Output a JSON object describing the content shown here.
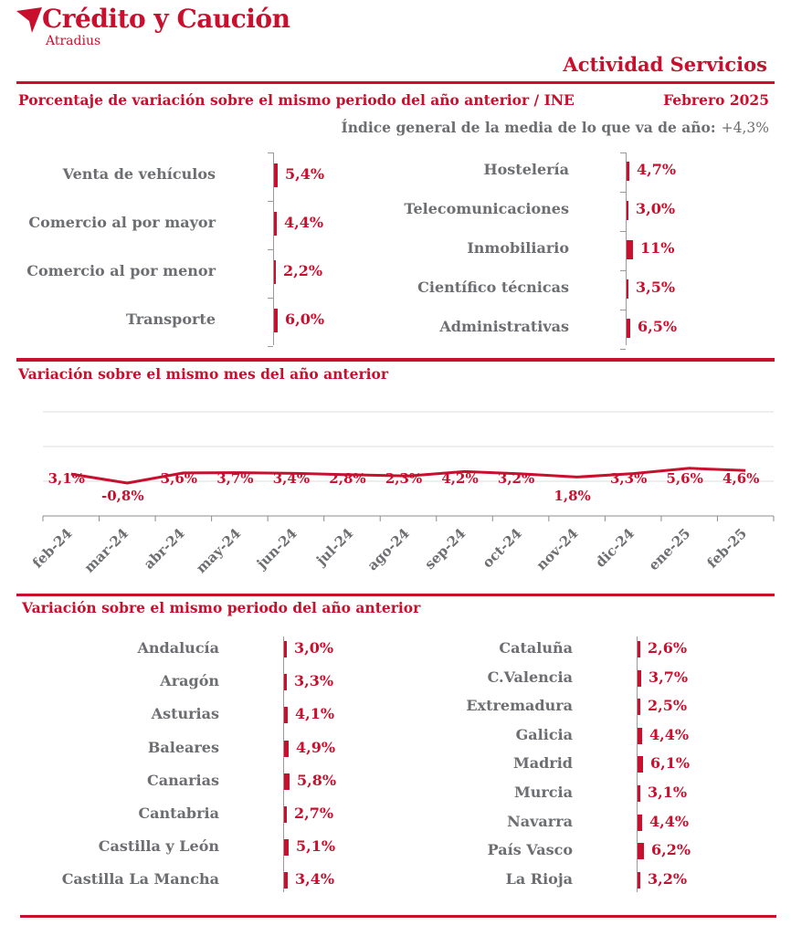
{
  "brand": {
    "name": "Crédito y Caución",
    "sub": "Atradius"
  },
  "report_title": "Actividad Servicios",
  "section1": {
    "title": "Porcentaje de variación sobre el mismo periodo del año anterior / INE",
    "date": "Febrero 2025",
    "index_label": "Índice general de la media de lo que va de año:",
    "index_value": "+4,3%",
    "left": [
      {
        "label": "Venta de vehículos",
        "value": 5.4,
        "text": "5,4%"
      },
      {
        "label": "Comercio al por mayor",
        "value": 4.4,
        "text": "4,4%"
      },
      {
        "label": "Comercio al por menor",
        "value": 2.2,
        "text": "2,2%"
      },
      {
        "label": "Transporte",
        "value": 6.0,
        "text": "6,0%"
      }
    ],
    "right": [
      {
        "label": "Hostelería",
        "value": 4.7,
        "text": "4,7%"
      },
      {
        "label": "Telecomunicaciones",
        "value": 3.0,
        "text": "3,0%"
      },
      {
        "label": "Inmobiliario",
        "value": 11,
        "text": "11%"
      },
      {
        "label": "Científico técnicas",
        "value": 3.5,
        "text": "3,5%"
      },
      {
        "label": "Administrativas",
        "value": 6.5,
        "text": "6,5%"
      }
    ]
  },
  "section2": {
    "title": "Variación sobre el mismo mes del año anterior"
  },
  "section3": {
    "title": "Variación sobre el mismo periodo del año anterior",
    "left": [
      {
        "label": "Andalucía",
        "value": 3.0,
        "text": "3,0%"
      },
      {
        "label": "Aragón",
        "value": 3.3,
        "text": "3,3%"
      },
      {
        "label": "Asturias",
        "value": 4.1,
        "text": "4,1%"
      },
      {
        "label": "Baleares",
        "value": 4.9,
        "text": "4,9%"
      },
      {
        "label": "Canarias",
        "value": 5.8,
        "text": "5,8%"
      },
      {
        "label": "Cantabria",
        "value": 2.7,
        "text": "2,7%"
      },
      {
        "label": "Castilla y León",
        "value": 5.1,
        "text": "5,1%"
      },
      {
        "label": "Castilla La Mancha",
        "value": 3.4,
        "text": "3,4%"
      }
    ],
    "right": [
      {
        "label": "Cataluña",
        "value": 2.6,
        "text": "2,6%"
      },
      {
        "label": "C.Valencia",
        "value": 3.7,
        "text": "3,7%"
      },
      {
        "label": "Extremadura",
        "value": 2.5,
        "text": "2,5%"
      },
      {
        "label": "Galicia",
        "value": 4.4,
        "text": "4,4%"
      },
      {
        "label": "Madrid",
        "value": 6.1,
        "text": "6,1%"
      },
      {
        "label": "Murcia",
        "value": 3.1,
        "text": "3,1%"
      },
      {
        "label": "Navarra",
        "value": 4.4,
        "text": "4,4%"
      },
      {
        "label": "País Vasco",
        "value": 6.2,
        "text": "6,2%"
      },
      {
        "label": "La Rioja",
        "value": 3.2,
        "text": "3,2%"
      }
    ]
  },
  "colors": {
    "accent": "#c8102e",
    "text_gray": "#6d6e71"
  },
  "chart_data": [
    {
      "type": "bar",
      "orientation": "horizontal",
      "categories": [
        "Venta de vehículos",
        "Comercio al por mayor",
        "Comercio al por menor",
        "Transporte",
        "Hostelería",
        "Telecomunicaciones",
        "Inmobiliario",
        "Científico técnicas",
        "Administrativas"
      ],
      "values": [
        5.4,
        4.4,
        2.2,
        6.0,
        4.7,
        3.0,
        11,
        3.5,
        6.5
      ],
      "title": "Porcentaje de variación sobre el mismo periodo del año anterior / INE"
    },
    {
      "type": "line",
      "title": "Variación sobre el mismo mes del año anterior",
      "x": [
        "feb-24",
        "mar-24",
        "abr-24",
        "may-24",
        "jun-24",
        "jul-24",
        "ago-24",
        "sep-24",
        "oct-24",
        "nov-24",
        "dic-24",
        "ene-25",
        "feb-25"
      ],
      "values": [
        3.1,
        -0.8,
        3.6,
        3.7,
        3.4,
        2.8,
        2.3,
        4.2,
        3.2,
        1.8,
        3.3,
        5.6,
        4.6
      ],
      "labels": [
        "3,1%",
        "-0,8%",
        "3,6%",
        "3,7%",
        "3,4%",
        "2,8%",
        "2,3%",
        "4,2%",
        "3,2%",
        "1,8%",
        "3,3%",
        "5,6%",
        "4,6%"
      ],
      "ylim": [
        -15,
        30
      ],
      "grid": true
    },
    {
      "type": "bar",
      "orientation": "horizontal",
      "categories": [
        "Andalucía",
        "Aragón",
        "Asturias",
        "Baleares",
        "Canarias",
        "Cantabria",
        "Castilla y León",
        "Castilla La Mancha",
        "Cataluña",
        "C.Valencia",
        "Extremadura",
        "Galicia",
        "Madrid",
        "Murcia",
        "Navarra",
        "País Vasco",
        "La Rioja"
      ],
      "values": [
        3.0,
        3.3,
        4.1,
        4.9,
        5.8,
        2.7,
        5.1,
        3.4,
        2.6,
        3.7,
        2.5,
        4.4,
        6.1,
        3.1,
        4.4,
        6.2,
        3.2
      ],
      "title": "Variación sobre el mismo periodo del año anterior"
    }
  ]
}
